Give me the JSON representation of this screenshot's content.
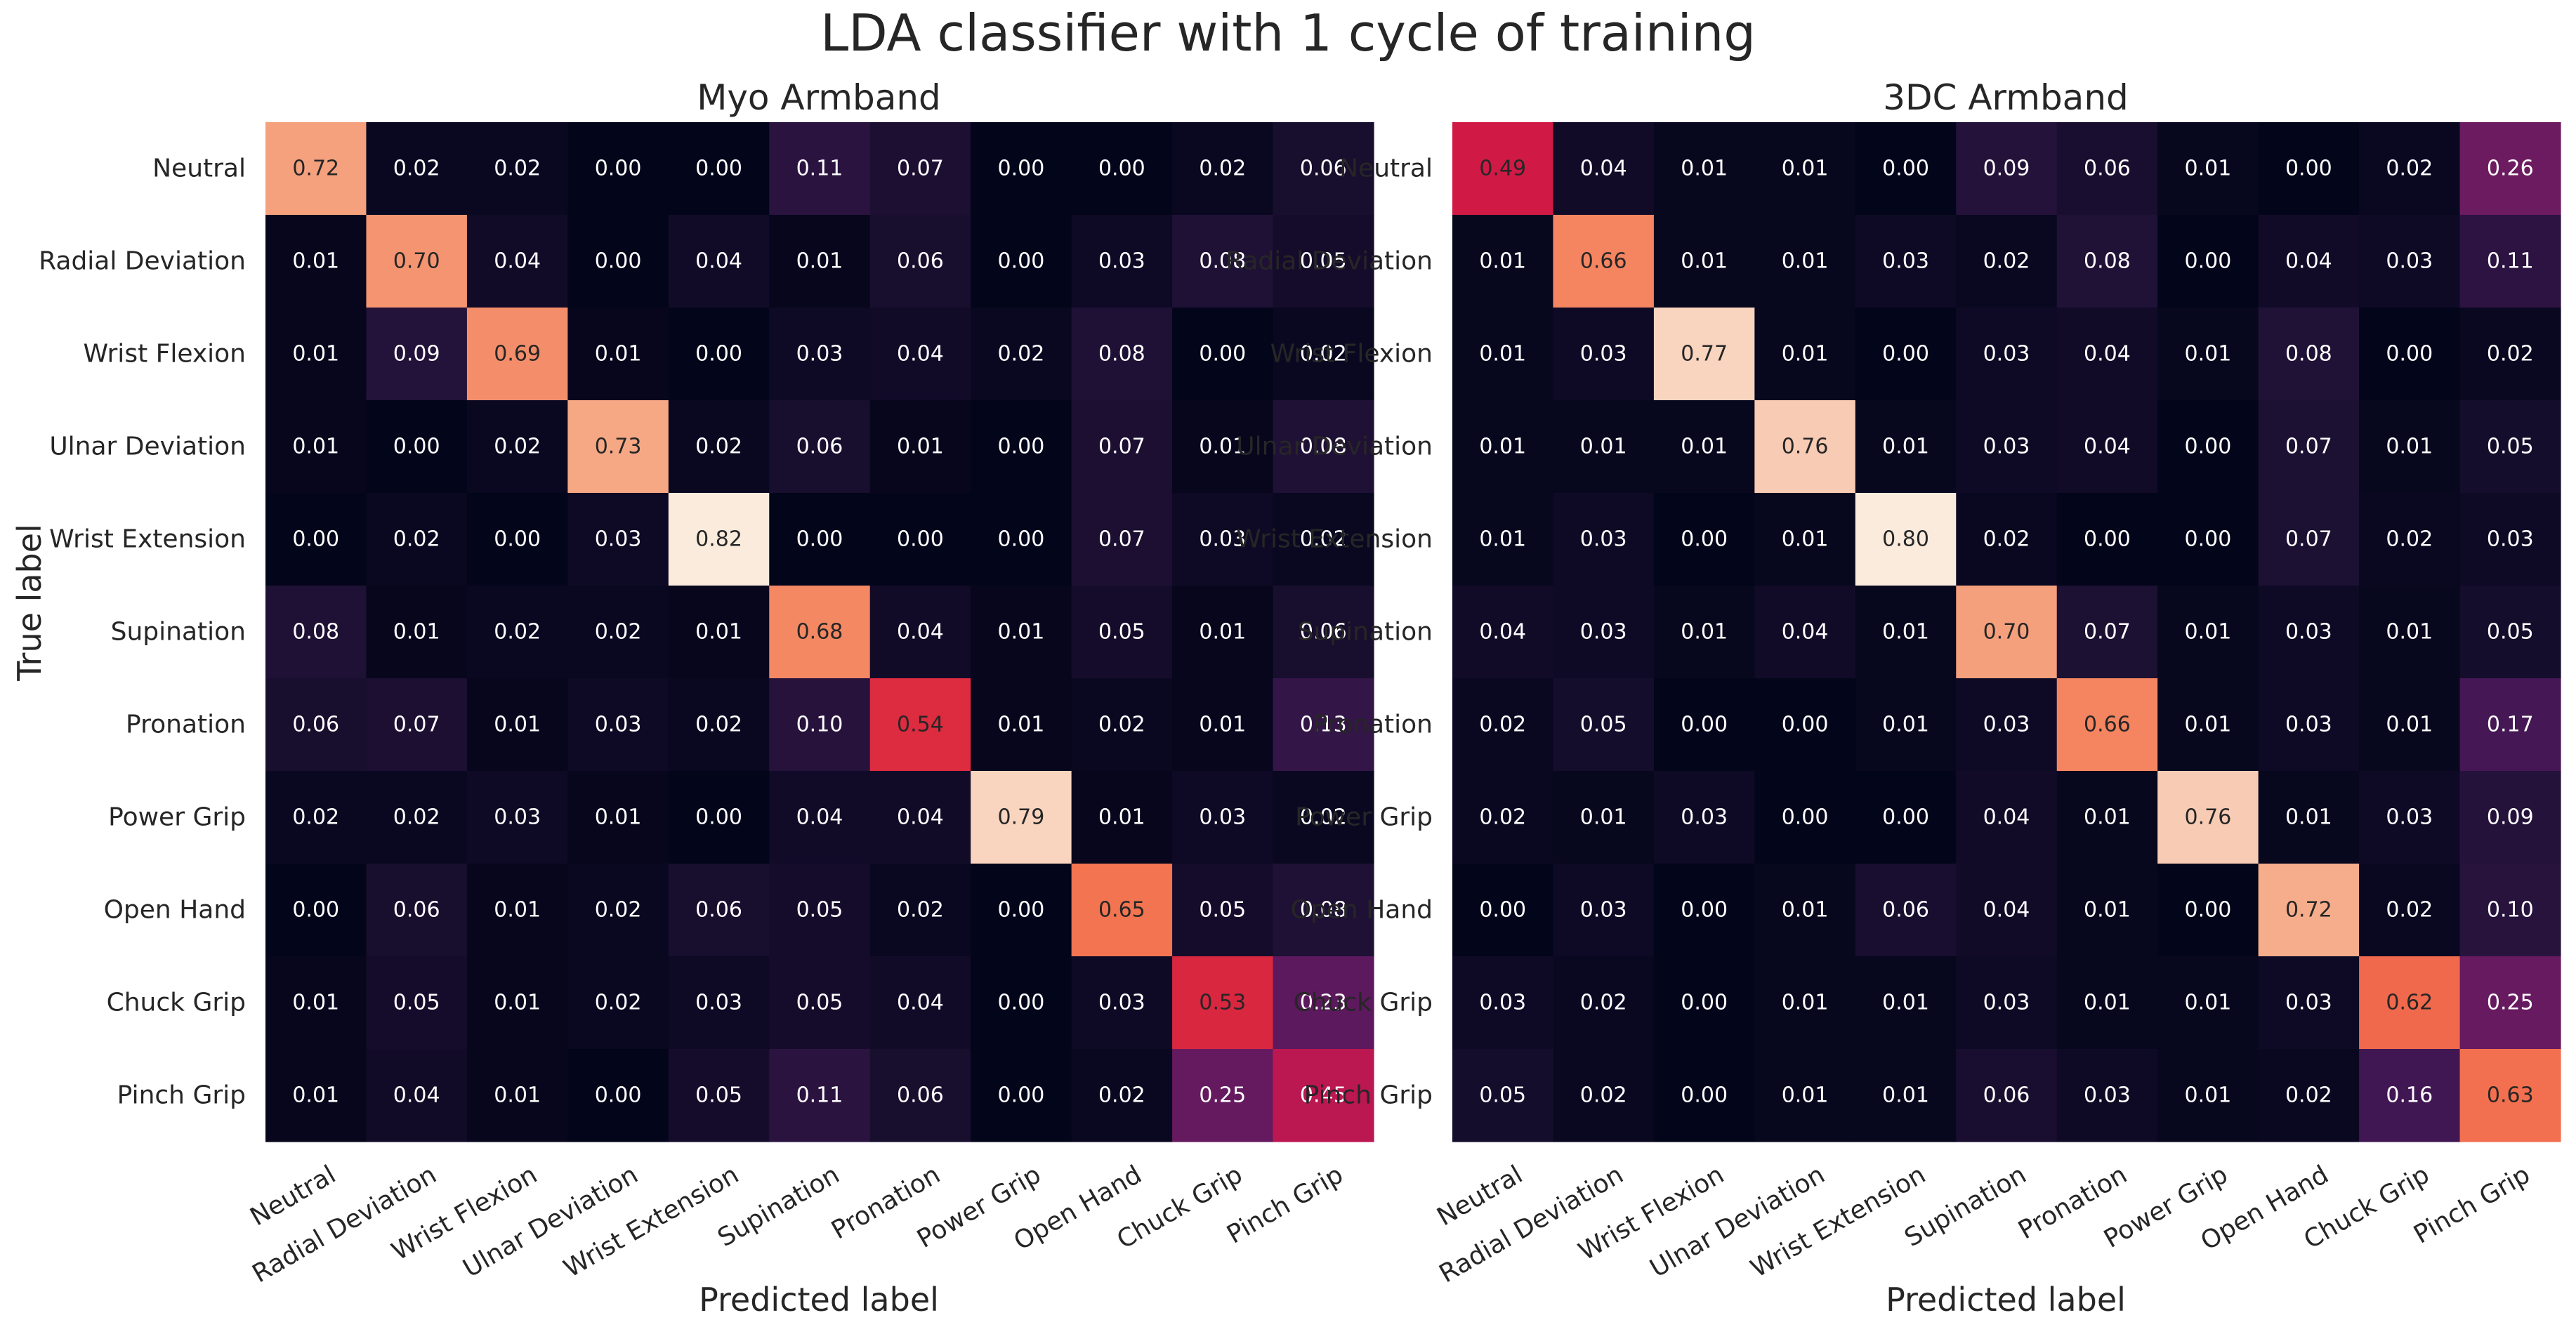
{
  "figure": {
    "title": "LDA classifier with 1 cycle of training",
    "ylabel": "True label"
  },
  "chart_data": [
    {
      "type": "heatmap",
      "title": "Myo Armband",
      "xlabel": "Predicted label",
      "ylabel": "True label",
      "x_categories": [
        "Neutral",
        "Radial Deviation",
        "Wrist Flexion",
        "Ulnar Deviation",
        "Wrist Extension",
        "Supination",
        "Pronation",
        "Power Grip",
        "Open Hand",
        "Chuck Grip",
        "Pinch Grip"
      ],
      "y_categories": [
        "Neutral",
        "Radial Deviation",
        "Wrist Flexion",
        "Ulnar Deviation",
        "Wrist Extension",
        "Supination",
        "Pronation",
        "Power Grip",
        "Open Hand",
        "Chuck Grip",
        "Pinch Grip"
      ],
      "values": [
        [
          0.72,
          0.02,
          0.02,
          0.0,
          0.0,
          0.11,
          0.07,
          0.0,
          0.0,
          0.02,
          0.06
        ],
        [
          0.01,
          0.7,
          0.04,
          0.0,
          0.04,
          0.01,
          0.06,
          0.0,
          0.03,
          0.08,
          0.05
        ],
        [
          0.01,
          0.09,
          0.69,
          0.01,
          0.0,
          0.03,
          0.04,
          0.02,
          0.08,
          0.0,
          0.02
        ],
        [
          0.01,
          0.0,
          0.02,
          0.73,
          0.02,
          0.06,
          0.01,
          0.0,
          0.07,
          0.01,
          0.08
        ],
        [
          0.0,
          0.02,
          0.0,
          0.03,
          0.82,
          0.0,
          0.0,
          0.0,
          0.07,
          0.03,
          0.02
        ],
        [
          0.08,
          0.01,
          0.02,
          0.02,
          0.01,
          0.68,
          0.04,
          0.01,
          0.05,
          0.01,
          0.06
        ],
        [
          0.06,
          0.07,
          0.01,
          0.03,
          0.02,
          0.1,
          0.54,
          0.01,
          0.02,
          0.01,
          0.13
        ],
        [
          0.02,
          0.02,
          0.03,
          0.01,
          0.0,
          0.04,
          0.04,
          0.79,
          0.01,
          0.03,
          0.02
        ],
        [
          0.0,
          0.06,
          0.01,
          0.02,
          0.06,
          0.05,
          0.02,
          0.0,
          0.65,
          0.05,
          0.08
        ],
        [
          0.01,
          0.05,
          0.01,
          0.02,
          0.03,
          0.05,
          0.04,
          0.0,
          0.03,
          0.53,
          0.23
        ],
        [
          0.01,
          0.04,
          0.01,
          0.0,
          0.05,
          0.11,
          0.06,
          0.0,
          0.02,
          0.25,
          0.45
        ]
      ],
      "vmin": 0.0,
      "vmax": 0.82,
      "colormap": "rocket"
    },
    {
      "type": "heatmap",
      "title": "3DC Armband",
      "xlabel": "Predicted label",
      "ylabel": "",
      "x_categories": [
        "Neutral",
        "Radial Deviation",
        "Wrist Flexion",
        "Ulnar Deviation",
        "Wrist Extension",
        "Supination",
        "Pronation",
        "Power Grip",
        "Open Hand",
        "Chuck Grip",
        "Pinch Grip"
      ],
      "y_categories": [
        "Neutral",
        "Radial Deviation",
        "Wrist Flexion",
        "Ulnar Deviation",
        "Wrist Extension",
        "Supination",
        "Pronation",
        "Power Grip",
        "Open Hand",
        "Chuck Grip",
        "Pinch Grip"
      ],
      "values": [
        [
          0.49,
          0.04,
          0.01,
          0.01,
          0.0,
          0.09,
          0.06,
          0.01,
          0.0,
          0.02,
          0.26
        ],
        [
          0.01,
          0.66,
          0.01,
          0.01,
          0.03,
          0.02,
          0.08,
          0.0,
          0.04,
          0.03,
          0.11
        ],
        [
          0.01,
          0.03,
          0.77,
          0.01,
          0.0,
          0.03,
          0.04,
          0.01,
          0.08,
          0.0,
          0.02
        ],
        [
          0.01,
          0.01,
          0.01,
          0.76,
          0.01,
          0.03,
          0.04,
          0.0,
          0.07,
          0.01,
          0.05
        ],
        [
          0.01,
          0.03,
          0.0,
          0.01,
          0.8,
          0.02,
          0.0,
          0.0,
          0.07,
          0.02,
          0.03
        ],
        [
          0.04,
          0.03,
          0.01,
          0.04,
          0.01,
          0.7,
          0.07,
          0.01,
          0.03,
          0.01,
          0.05
        ],
        [
          0.02,
          0.05,
          0.0,
          0.0,
          0.01,
          0.03,
          0.66,
          0.01,
          0.03,
          0.01,
          0.17
        ],
        [
          0.02,
          0.01,
          0.03,
          0.0,
          0.0,
          0.04,
          0.01,
          0.76,
          0.01,
          0.03,
          0.09
        ],
        [
          0.0,
          0.03,
          0.0,
          0.01,
          0.06,
          0.04,
          0.01,
          0.0,
          0.72,
          0.02,
          0.1
        ],
        [
          0.03,
          0.02,
          0.0,
          0.01,
          0.01,
          0.03,
          0.01,
          0.01,
          0.03,
          0.62,
          0.25
        ],
        [
          0.05,
          0.02,
          0.0,
          0.01,
          0.01,
          0.06,
          0.03,
          0.01,
          0.02,
          0.16,
          0.63
        ]
      ],
      "vmin": 0.0,
      "vmax": 0.8,
      "colormap": "rocket"
    }
  ]
}
